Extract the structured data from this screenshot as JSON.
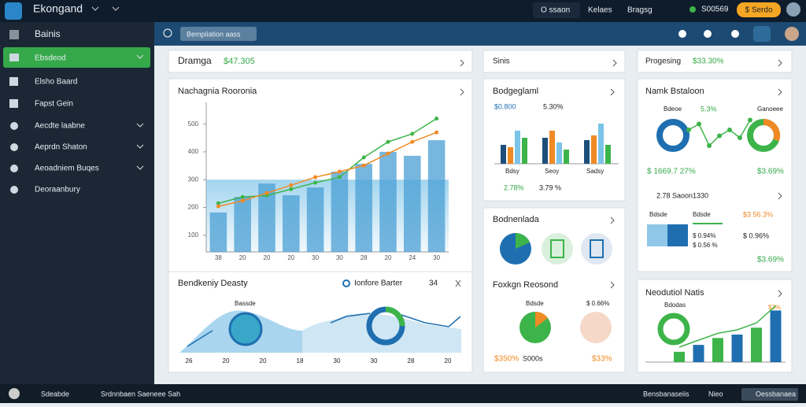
{
  "header": {
    "brand": "Ekongand",
    "tabs": [
      "O ssaon",
      "Kelaes",
      "Bragsg"
    ],
    "status": "S00569",
    "button": "$ Serdo"
  },
  "sidebar": {
    "title": "Bainis",
    "items": [
      "Ebsdeod",
      "Elsho Baard",
      "Fapst Gein",
      "Aecdte laabne",
      "Aeprdn Shaton",
      "Aeoadniem Buqes",
      "Deoraanbury"
    ]
  },
  "toolbar": {
    "search": "Bempiiation aass"
  },
  "cards": {
    "top1": {
      "title": "Dramga",
      "value": "$47.305"
    },
    "top2": {
      "title": "Sinis"
    },
    "top3": {
      "title": "Progesing",
      "value": "$33.30%"
    },
    "bottom": {
      "title": "Bendkeniy Deasty",
      "legend": "Ionfore Barter",
      "count": "34",
      "label": "Bassde",
      "xticks": [
        "26",
        "20",
        "20",
        "18",
        "30",
        "30",
        "28",
        "20"
      ]
    },
    "bargraph": {
      "title": "Bodgeglaml",
      "value": "$0.800",
      "change": "5.30%",
      "labels": [
        "Bdsy",
        "Seoy",
        "Sadsy"
      ],
      "foot1": "2.78%",
      "foot2": "3.79 %"
    },
    "namk": {
      "title": "Namk Bstaloon",
      "tag1": "Bdeoe",
      "tag2": "5.3%",
      "tag3": "Ganoeee",
      "stat1": "$ 1669.7 27%",
      "stat2": "$3.69%",
      "sub": "2.78 Saoon1330",
      "col1": "Bdsde",
      "col2": "Bdsde",
      "val1": "$ 0.94%",
      "val2": "$3 56.3%",
      "val3": "$ 0.96%",
      "val4": "$ 0.56 %",
      "foot": "$3.69%"
    },
    "bodn": {
      "title": "Bodnenlada",
      "title2": "Foxkgn Reosond",
      "tag1": "Bdsde",
      "tag2": "$ 0.66%",
      "foot1": "$350%",
      "foot2": "S000s",
      "foot3": "$33%"
    },
    "neod": {
      "title": "Neodutiol Natis",
      "tag1": "Bdodas",
      "tag2": "$3%"
    }
  },
  "main_chart": {
    "title": "Nachagnia Rooronia",
    "categories": [
      "38",
      "20",
      "20",
      "20",
      "30",
      "30",
      "28",
      "20",
      "24",
      "30"
    ],
    "ylim": [
      40,
      550
    ],
    "yticks": [
      100,
      200,
      300,
      400,
      500
    ],
    "series": [
      {
        "color": "#4a9fd4",
        "values": [
          182,
          238,
          286,
          244,
          272,
          329,
          357,
          400,
          386,
          442
        ]
      },
      {
        "color": "#3db44a",
        "values": [
          215,
          238,
          243,
          266,
          289,
          309,
          380,
          436,
          465,
          520
        ]
      },
      {
        "color": "#f08a24",
        "values": [
          204,
          224,
          252,
          280,
          309,
          329,
          351,
          394,
          436,
          470
        ]
      }
    ]
  },
  "bar_chart": {
    "ylim": [
      0,
      100
    ],
    "series": [
      {
        "color": "#1d4e7a",
        "values": [
          40,
          55,
          50
        ]
      },
      {
        "color": "#f08a24",
        "values": [
          35,
          70,
          60
        ]
      },
      {
        "color": "#7cc3e8",
        "values": [
          70,
          45,
          85
        ]
      },
      {
        "color": "#3db44a",
        "values": [
          55,
          30,
          40
        ]
      }
    ]
  },
  "spark_chart": {
    "ylim": [
      0,
      100
    ],
    "color": "#3db44a",
    "values": [
      60,
      75,
      20,
      45,
      60,
      40,
      85
    ]
  },
  "growth_chart": {
    "ylim": [
      0,
      80
    ],
    "colors": [
      "#3db44a",
      "#1f6fb0"
    ],
    "values": [
      15,
      25,
      35,
      40,
      50,
      75
    ]
  },
  "footer": {
    "left": "Sdeabde",
    "mid": "Srdnnbaen Saeneee Sah",
    "right1": "Bensbanaseiis",
    "right2": "Nieo",
    "button": "Oessbanaea"
  }
}
